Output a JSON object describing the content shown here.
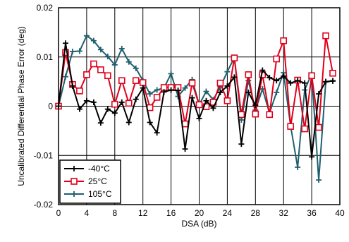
{
  "chart_data": {
    "type": "line",
    "xlabel": "DSA (dB)",
    "ylabel": "Uncalibrated Differential Phase Error (deg)",
    "xlim": [
      0,
      40
    ],
    "ylim": [
      -0.02,
      0.02
    ],
    "xticks": [
      0,
      4,
      8,
      12,
      16,
      20,
      24,
      28,
      32,
      36,
      40
    ],
    "yticks": [
      -0.02,
      -0.01,
      0,
      0.01,
      0.02
    ],
    "xtick_labels": [
      "0",
      "4",
      "8",
      "12",
      "16",
      "20",
      "24",
      "28",
      "32",
      "36",
      "40"
    ],
    "ytick_labels": [
      "-0.02",
      "-0.01",
      "0",
      "0.01",
      "0.02"
    ],
    "grid": true,
    "legend_position": "bottom-left",
    "x": [
      0,
      1,
      2,
      3,
      4,
      5,
      6,
      7,
      8,
      9,
      10,
      11,
      12,
      13,
      14,
      15,
      16,
      17,
      18,
      19,
      20,
      21,
      22,
      23,
      24,
      25,
      26,
      27,
      28,
      29,
      30,
      31,
      32,
      33,
      34,
      35,
      36,
      37,
      38,
      39
    ],
    "series": [
      {
        "name": "-40°C",
        "color": "#000000",
        "marker": "plus",
        "values": [
          0,
          0.0128,
          0.0041,
          -0.0006,
          0.0011,
          0.0008,
          -0.0034,
          -0.0006,
          -0.0014,
          0.0008,
          -0.0033,
          0.0014,
          0.0037,
          -0.0033,
          -0.0054,
          0.0029,
          0.0033,
          0.0032,
          -0.0087,
          0.0017,
          -0.0025,
          0.0011,
          -0.0004,
          0.0028,
          0.0041,
          0.0059,
          -0.0077,
          0.0028,
          0.0002,
          0.0073,
          0.0058,
          0.0052,
          0.0061,
          0.0047,
          0.0052,
          0.0047,
          -0.0103,
          0.0025,
          0.005,
          0.0051
        ]
      },
      {
        "name": "25°C",
        "color": "#e0001b",
        "marker": "square",
        "values": [
          0,
          0.0109,
          0.0044,
          0.0031,
          0.0064,
          0.0086,
          0.0074,
          0.0062,
          0.0004,
          0.0052,
          0.0006,
          0.0052,
          0.0048,
          -0.0003,
          0.0018,
          0.0038,
          0.0038,
          0.0038,
          -0.0036,
          0.0047,
          0.0003,
          -0.0001,
          0.0008,
          0.0047,
          0.0011,
          0.0098,
          -0.0017,
          0.0064,
          -0.0016,
          0.0064,
          -0.0017,
          0.0096,
          0.0133,
          -0.0041,
          0.0053,
          -0.0046,
          0.0062,
          -0.0043,
          0.0143,
          0.0067
        ]
      },
      {
        "name": "105°C",
        "color": "#1f5f6e",
        "marker": "plus",
        "values": [
          0,
          0.006,
          0.0111,
          0.0112,
          0.0143,
          0.0133,
          0.0115,
          0.0101,
          0.0084,
          0.0117,
          0.009,
          0.0077,
          0.0052,
          0.0025,
          0.0033,
          0.0037,
          0.0066,
          0.002,
          0.0037,
          0.0054,
          0.0003,
          0.003,
          0.0013,
          0.0039,
          0.007,
          0.0099,
          -0.0028,
          0.0052,
          -0.0008,
          0.0035,
          -0.0014,
          0.0028,
          0.0068,
          -0.004,
          -0.0124,
          0.0033,
          0.0066,
          -0.015,
          0.0049,
          0.0052
        ]
      }
    ]
  }
}
